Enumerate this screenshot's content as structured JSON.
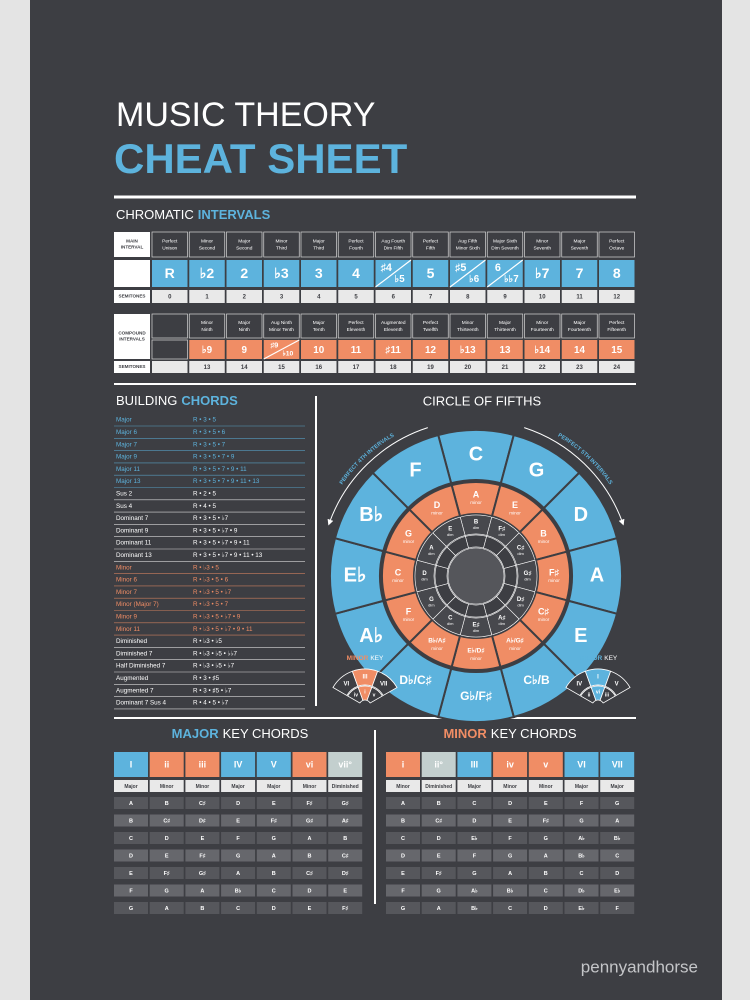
{
  "header": {
    "title_line1": "MUSIC THEORY",
    "title_line2": "CHEAT SHEET"
  },
  "intervals": {
    "heading": [
      "CHROMATIC",
      "INTERVALS"
    ],
    "main": {
      "row_label": [
        "MAIN",
        "INTERVAL"
      ],
      "names": [
        [
          "Perfect",
          "Unison"
        ],
        [
          "Minor",
          "Second"
        ],
        [
          "Major",
          "Second"
        ],
        [
          "Minor",
          "Third"
        ],
        [
          "Major",
          "Third"
        ],
        [
          "Perfect",
          "Fourth"
        ],
        [
          "Aug Fourth",
          "Dim Fifth"
        ],
        [
          "Perfect",
          "Fifth"
        ],
        [
          "Aug Fifth",
          "Minor Sixth"
        ],
        [
          "Major Sixth",
          "Dim Seventh"
        ],
        [
          "Minor",
          "Seventh"
        ],
        [
          "Major",
          "Seventh"
        ],
        [
          "Perfect",
          "Octave"
        ]
      ],
      "symbols": [
        "R",
        "♭2",
        "2",
        "♭3",
        "3",
        "4",
        [
          "♯4",
          "♭5"
        ],
        "5",
        [
          "♯5",
          "♭6"
        ],
        [
          "6",
          "♭♭7"
        ],
        "♭7",
        "7",
        "8"
      ],
      "semitones_label": "SEMITONES",
      "semitones": [
        0,
        1,
        2,
        3,
        4,
        5,
        6,
        7,
        8,
        9,
        10,
        11,
        12
      ]
    },
    "compound": {
      "row_label": [
        "COMPOUND",
        "INTERVALS"
      ],
      "names": [
        [
          "Minor",
          "Ninth"
        ],
        [
          "Major",
          "Ninth"
        ],
        [
          "Aug Ninth",
          "Minor Tenth"
        ],
        [
          "Major",
          "Tenth"
        ],
        [
          "Perfect",
          "Eleventh"
        ],
        [
          "Augmented",
          "Eleventh"
        ],
        [
          "Perfect",
          "Twelfth"
        ],
        [
          "Minor",
          "Thirteenth"
        ],
        [
          "Major",
          "Thirteenth"
        ],
        [
          "Minor",
          "Fourteenth"
        ],
        [
          "Major",
          "Fourteenth"
        ],
        [
          "Perfect",
          "Fifteenth"
        ]
      ],
      "symbols": [
        "♭9",
        "9",
        [
          "♯9",
          "♭10"
        ],
        "10",
        "11",
        "♯11",
        "12",
        "♭13",
        "13",
        "♭14",
        "14",
        "15"
      ],
      "semitones_label": "SEMITONES",
      "semitones": [
        13,
        14,
        15,
        16,
        17,
        18,
        19,
        20,
        21,
        22,
        23,
        24
      ]
    }
  },
  "chords": {
    "heading": [
      "BUILDING",
      "CHORDS"
    ],
    "group_colors": {
      "major": "#5db3dd",
      "other": "#ffffff",
      "minor": "#f08d65"
    },
    "rows": [
      {
        "name": "Major",
        "formula": "R • 3 • 5",
        "group": "major"
      },
      {
        "name": "Major 6",
        "formula": "R • 3 • 5 • 6",
        "group": "major"
      },
      {
        "name": "Major 7",
        "formula": "R • 3 • 5 • 7",
        "group": "major"
      },
      {
        "name": "Major 9",
        "formula": "R • 3 • 5 • 7 • 9",
        "group": "major"
      },
      {
        "name": "Major 11",
        "formula": "R • 3 • 5 • 7 • 9 • 11",
        "group": "major"
      },
      {
        "name": "Major 13",
        "formula": "R • 3 • 5 • 7 • 9 • 11 • 13",
        "group": "major"
      },
      {
        "name": "Sus 2",
        "formula": "R • 2 • 5",
        "group": "other"
      },
      {
        "name": "Sus 4",
        "formula": "R • 4 • 5",
        "group": "other"
      },
      {
        "name": "Dominant 7",
        "formula": "R • 3 • 5 • ♭7",
        "group": "other"
      },
      {
        "name": "Dominant 9",
        "formula": "R • 3 • 5 • ♭7 • 9",
        "group": "other"
      },
      {
        "name": "Dominant 11",
        "formula": "R • 3 • 5 • ♭7 • 9 • 11",
        "group": "other"
      },
      {
        "name": "Dominant 13",
        "formula": "R • 3 • 5 • ♭7 • 9 • 11 • 13",
        "group": "other"
      },
      {
        "name": "Minor",
        "formula": "R • ♭3 • 5",
        "group": "minor"
      },
      {
        "name": "Minor 6",
        "formula": "R • ♭3 • 5 • 6",
        "group": "minor"
      },
      {
        "name": "Minor 7",
        "formula": "R • ♭3 • 5 • ♭7",
        "group": "minor"
      },
      {
        "name": "Minor (Major 7)",
        "formula": "R • ♭3 • 5 • 7",
        "group": "minor"
      },
      {
        "name": "Minor 9",
        "formula": "R • ♭3 • 5 • ♭7 • 9",
        "group": "minor"
      },
      {
        "name": "Minor 11",
        "formula": "R • ♭3 • 5 • ♭7 • 9 • 11",
        "group": "minor"
      },
      {
        "name": "Diminished",
        "formula": "R • ♭3 • ♭5",
        "group": "other"
      },
      {
        "name": "Diminished 7",
        "formula": "R • ♭3 • ♭5 • ♭♭7",
        "group": "other"
      },
      {
        "name": "Half Diminished 7",
        "formula": "R • ♭3 • ♭5 • ♭7",
        "group": "other"
      },
      {
        "name": "Augmented",
        "formula": "R • 3 • ♯5",
        "group": "other"
      },
      {
        "name": "Augmented 7",
        "formula": "R • 3 • ♯5 • ♭7",
        "group": "other"
      },
      {
        "name": "Dominant 7 Sus 4",
        "formula": "R • 4 • 5 • ♭7",
        "group": "other"
      }
    ]
  },
  "circle": {
    "title": "CIRCLE OF FIFTHS",
    "left_arc": "PERFECT 4TH INTERVALS",
    "right_arc": "PERFECT 5TH INTERVALS",
    "major_keys": [
      "C",
      "G",
      "D",
      "A",
      "E",
      "C♭/B",
      "G♭/F♯",
      "D♭/C♯",
      "A♭",
      "E♭",
      "B♭",
      "F"
    ],
    "minor_keys": [
      "A",
      "E",
      "B",
      "F♯",
      "C♯",
      "A♭/G♯",
      "E♭/D♯",
      "B♭/A♯",
      "F",
      "C",
      "G",
      "D"
    ],
    "minor_word": "minor",
    "dim_roots": [
      "B",
      "F♯",
      "C♯",
      "G♯",
      "D♯",
      "A♯",
      "E♯",
      "C",
      "G",
      "D",
      "A",
      "E"
    ],
    "dim_word": "dim",
    "minor_key_diagram": {
      "heading": [
        "MINOR",
        "KEY"
      ],
      "outer": [
        "VI",
        "III",
        "VII"
      ],
      "inner": [
        "iv",
        "i",
        "v"
      ]
    },
    "major_key_diagram": {
      "heading": [
        "MAJOR",
        "KEY"
      ],
      "outer": [
        "IV",
        "I",
        "V"
      ],
      "inner": [
        "ii",
        "vi",
        "iii"
      ]
    }
  },
  "major_key_chords": {
    "heading": [
      "MAJOR",
      "KEY CHORDS"
    ],
    "numerals": [
      "I",
      "ii",
      "iii",
      "IV",
      "V",
      "vi",
      "vii°"
    ],
    "header_colors": [
      "#5db3dd",
      "#f08d65",
      "#f08d65",
      "#5db3dd",
      "#5db3dd",
      "#f08d65",
      "#c3cfce"
    ],
    "qualities": [
      "Major",
      "Minor",
      "Minor",
      "Major",
      "Major",
      "Minor",
      "Diminished"
    ],
    "rows": [
      [
        "A",
        "B",
        "C♯",
        "D",
        "E",
        "F♯",
        "G♯"
      ],
      [
        "B",
        "C♯",
        "D♯",
        "E",
        "F♯",
        "G♯",
        "A♯"
      ],
      [
        "C",
        "D",
        "E",
        "F",
        "G",
        "A",
        "B"
      ],
      [
        "D",
        "E",
        "F♯",
        "G",
        "A",
        "B",
        "C♯"
      ],
      [
        "E",
        "F♯",
        "G♯",
        "A",
        "B",
        "C♯",
        "D♯"
      ],
      [
        "F",
        "G",
        "A",
        "B♭",
        "C",
        "D",
        "E"
      ],
      [
        "G",
        "A",
        "B",
        "C",
        "D",
        "E",
        "F♯"
      ]
    ]
  },
  "minor_key_chords": {
    "heading": [
      "MINOR",
      "KEY CHORDS"
    ],
    "numerals": [
      "i",
      "ii°",
      "III",
      "iv",
      "v",
      "VI",
      "VII"
    ],
    "header_colors": [
      "#f08d65",
      "#c3cfce",
      "#5db3dd",
      "#f08d65",
      "#f08d65",
      "#5db3dd",
      "#5db3dd"
    ],
    "qualities": [
      "Minor",
      "Diminished",
      "Major",
      "Minor",
      "Minor",
      "Major",
      "Major"
    ],
    "rows": [
      [
        "A",
        "B",
        "C",
        "D",
        "E",
        "F",
        "G"
      ],
      [
        "B",
        "C♯",
        "D",
        "E",
        "F♯",
        "G",
        "A"
      ],
      [
        "C",
        "D",
        "E♭",
        "F",
        "G",
        "A♭",
        "B♭"
      ],
      [
        "D",
        "E",
        "F",
        "G",
        "A",
        "B♭",
        "C"
      ],
      [
        "E",
        "F♯",
        "G",
        "A",
        "B",
        "C",
        "D"
      ],
      [
        "F",
        "G",
        "A♭",
        "B♭",
        "C",
        "D♭",
        "E♭"
      ],
      [
        "G",
        "A",
        "B♭",
        "C",
        "D",
        "E♭",
        "F"
      ]
    ]
  },
  "watermark": "pennyandhorse"
}
